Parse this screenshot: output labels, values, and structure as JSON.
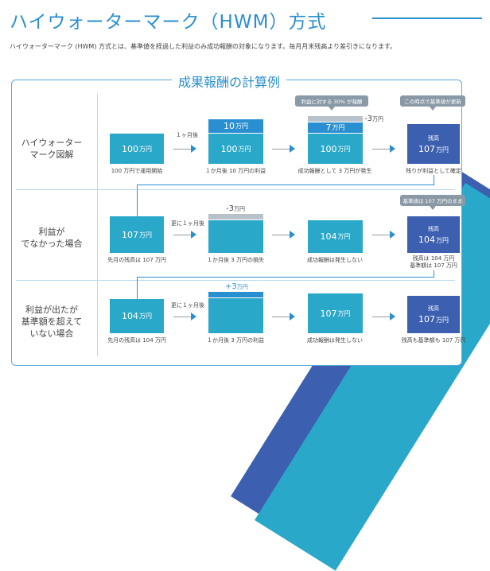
{
  "title": "ハイウォーターマーク（HWM）方式",
  "description": "ハイウォーターマーク (HWM) 方式とは、基準値を経過した利益のみ成功報酬の対象になります。毎月月末残高より差引きになります。",
  "panel_title": "成果報酬の計算例",
  "unit": "万円",
  "row1": {
    "label": [
      "ハイウォーター",
      "マーク図解"
    ],
    "box1": {
      "value": "100",
      "caption": "100 万円で運用開始"
    },
    "arrow1_label": "１ヶ月後",
    "box2": {
      "top": "10",
      "value": "100",
      "caption": "１か月後 10 万円の利益"
    },
    "tip1": "利益に対する 30% が報酬",
    "box3": {
      "top": "7",
      "value": "100",
      "minus": "-3",
      "caption": "成功報酬として 3 万円が発生"
    },
    "tip2": "この時点で基準値が更新",
    "box4": {
      "small": "残高",
      "value": "107",
      "caption": "残りが利益として確定"
    }
  },
  "row2": {
    "label": [
      "利益が",
      "でなかった場合"
    ],
    "box1": {
      "value": "107",
      "caption": "先月の残高は 107 万円"
    },
    "arrow1_label": "更に１ヶ月後",
    "box2": {
      "minus": "-3",
      "caption": "１か月後 3 万円の損失"
    },
    "box3": {
      "value": "104",
      "caption": "成功報酬は発生しない"
    },
    "tip": "基準値は 107 万円のまま",
    "box4": {
      "small": "残高",
      "value": "104",
      "caption": [
        "残高は 104 万円",
        "基準額は 107 万円"
      ]
    }
  },
  "row3": {
    "label": [
      "利益が出たが",
      "基準額を超えて",
      "いない場合"
    ],
    "box1": {
      "value": "104",
      "caption": "先月の残高は 104 万円"
    },
    "arrow1_label": "更に１ヶ月後",
    "box2": {
      "plus": "+3",
      "caption": "１か月後 3 万円の利益"
    },
    "box3": {
      "value": "107",
      "caption": "成功報酬は発生しない"
    },
    "box4": {
      "small": "残高",
      "value": "107",
      "caption": "残高も基準額も 107 万円"
    }
  }
}
